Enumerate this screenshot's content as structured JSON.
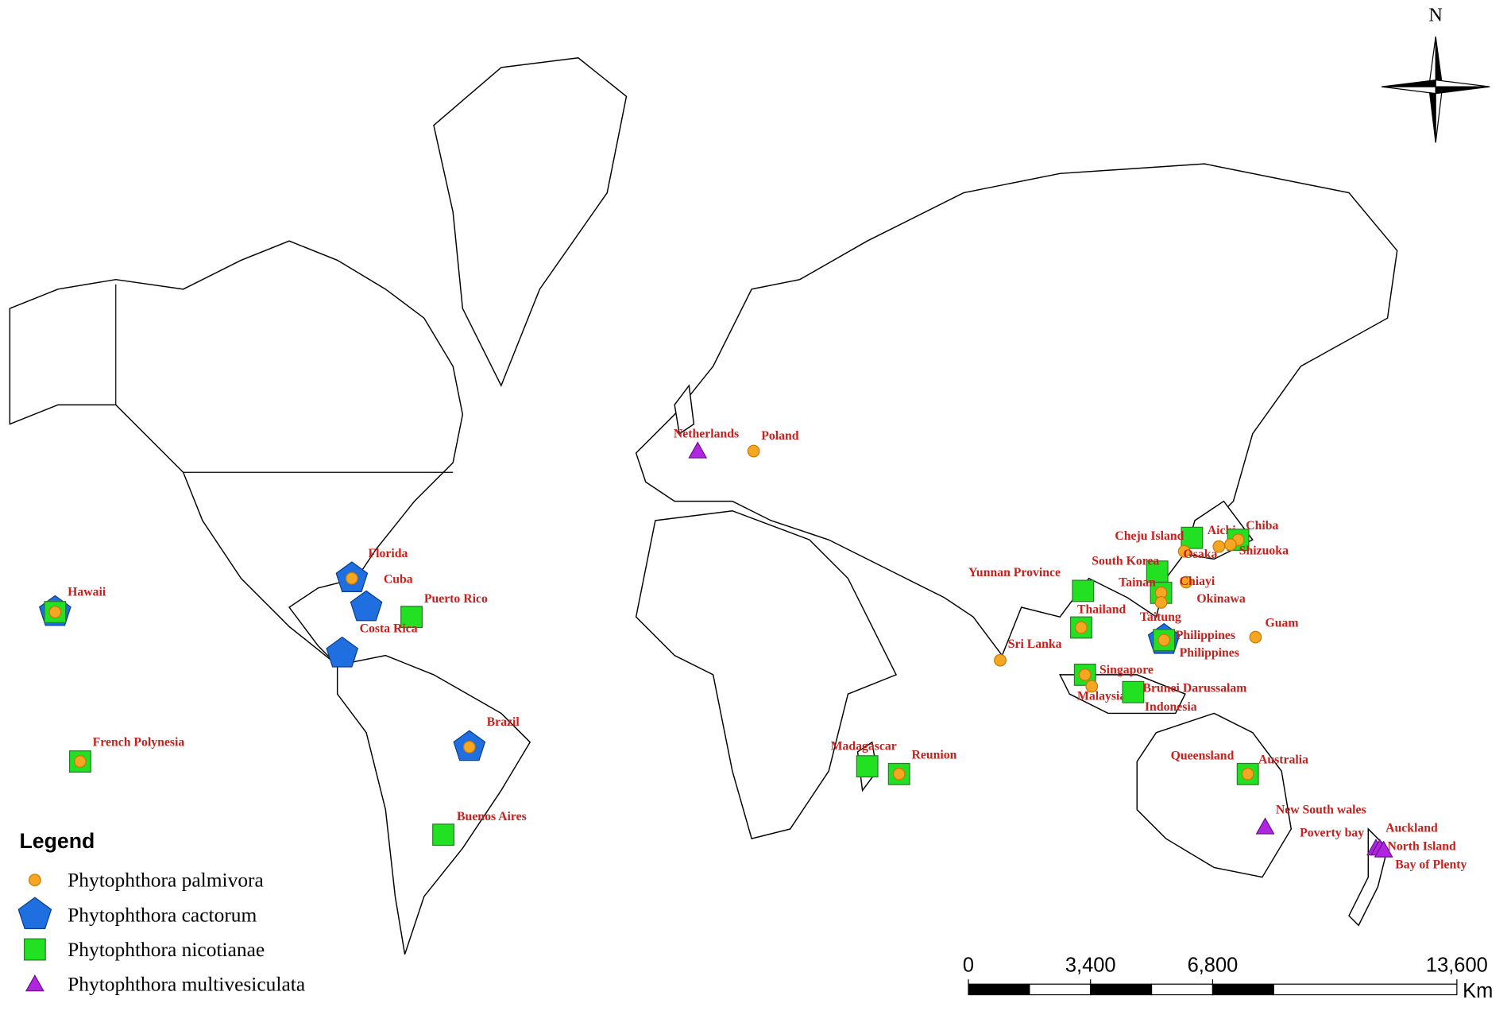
{
  "map": {
    "north": "N",
    "legend": {
      "title": "Legend",
      "entries": [
        {
          "label": "Phytophthora palmivora",
          "marker": "circle",
          "color": "#f5a623"
        },
        {
          "label": "Phytophthora cactorum",
          "marker": "pentagon",
          "color": "#1f6fe0"
        },
        {
          "label": "Phytophthora nicotianae",
          "marker": "square",
          "color": "#22e022"
        },
        {
          "label": "Phytophthora multivesiculata",
          "marker": "triangle",
          "color": "#b026e0"
        }
      ]
    },
    "scale_bar": {
      "unit": "Km",
      "ticks": [
        {
          "value": 0,
          "label": "0"
        },
        {
          "value": 3400,
          "label": "3,400"
        },
        {
          "value": 6800,
          "label": "6,800"
        },
        {
          "value": 13600,
          "label": "13,600"
        }
      ]
    },
    "places": [
      {
        "label": "Hawaii",
        "species": [
          1,
          2,
          0
        ]
      },
      {
        "label": "Florida",
        "species": [
          1,
          0
        ]
      },
      {
        "label": "Cuba",
        "species": [
          1
        ]
      },
      {
        "label": "Puerto Rico",
        "species": [
          2
        ]
      },
      {
        "label": "Costa Rica",
        "species": [
          1
        ]
      },
      {
        "label": "Brazil",
        "species": [
          1,
          0
        ]
      },
      {
        "label": "French Polynesia",
        "species": [
          2,
          0
        ]
      },
      {
        "label": "Buenos Aires",
        "species": [
          2
        ]
      },
      {
        "label": "Netherlands",
        "species": [
          3
        ]
      },
      {
        "label": "Poland",
        "species": [
          0
        ]
      },
      {
        "label": "Yunnan Province",
        "species": [
          2
        ]
      },
      {
        "label": "Thailand",
        "species": [
          2,
          0
        ]
      },
      {
        "label": "Sri Lanka",
        "species": [
          0
        ]
      },
      {
        "label": "Singapore",
        "species": [
          2,
          0
        ]
      },
      {
        "label": "Malaysia",
        "species": [
          0
        ]
      },
      {
        "label": "Brunei Darussalam",
        "species": [
          2
        ]
      },
      {
        "label": "Indonesia",
        "species": []
      },
      {
        "label": "Madagascar",
        "species": [
          2
        ]
      },
      {
        "label": "Reunion",
        "species": [
          2,
          0
        ]
      },
      {
        "label": "Cheju Island",
        "species": [
          2
        ]
      },
      {
        "label": "South Korea",
        "species": [
          2
        ]
      },
      {
        "label": "Aichi",
        "species": [
          0
        ]
      },
      {
        "label": "Chiba",
        "species": [
          2,
          0
        ]
      },
      {
        "label": "Osaka",
        "species": [
          0
        ]
      },
      {
        "label": "Shizuoka",
        "species": [
          0
        ]
      },
      {
        "label": "Chiayi",
        "species": [
          0
        ]
      },
      {
        "label": "Tainan",
        "species": [
          2,
          0
        ]
      },
      {
        "label": "Taitung",
        "species": [
          0
        ]
      },
      {
        "label": "Okinawa",
        "species": []
      },
      {
        "label": "Philippines",
        "species": [
          1,
          2,
          0
        ]
      },
      {
        "label": "Philippines",
        "species": []
      },
      {
        "label": "Guam",
        "species": [
          0
        ]
      },
      {
        "label": "Queensland",
        "species": [
          2,
          0
        ]
      },
      {
        "label": "Australia",
        "species": []
      },
      {
        "label": "New South wales",
        "species": [
          3
        ]
      },
      {
        "label": "Poverty bay",
        "species": [
          3
        ]
      },
      {
        "label": "Auckland",
        "species": [
          3
        ]
      },
      {
        "label": "North Island",
        "species": []
      },
      {
        "label": "Bay of Plenty",
        "species": [
          3
        ]
      }
    ]
  }
}
